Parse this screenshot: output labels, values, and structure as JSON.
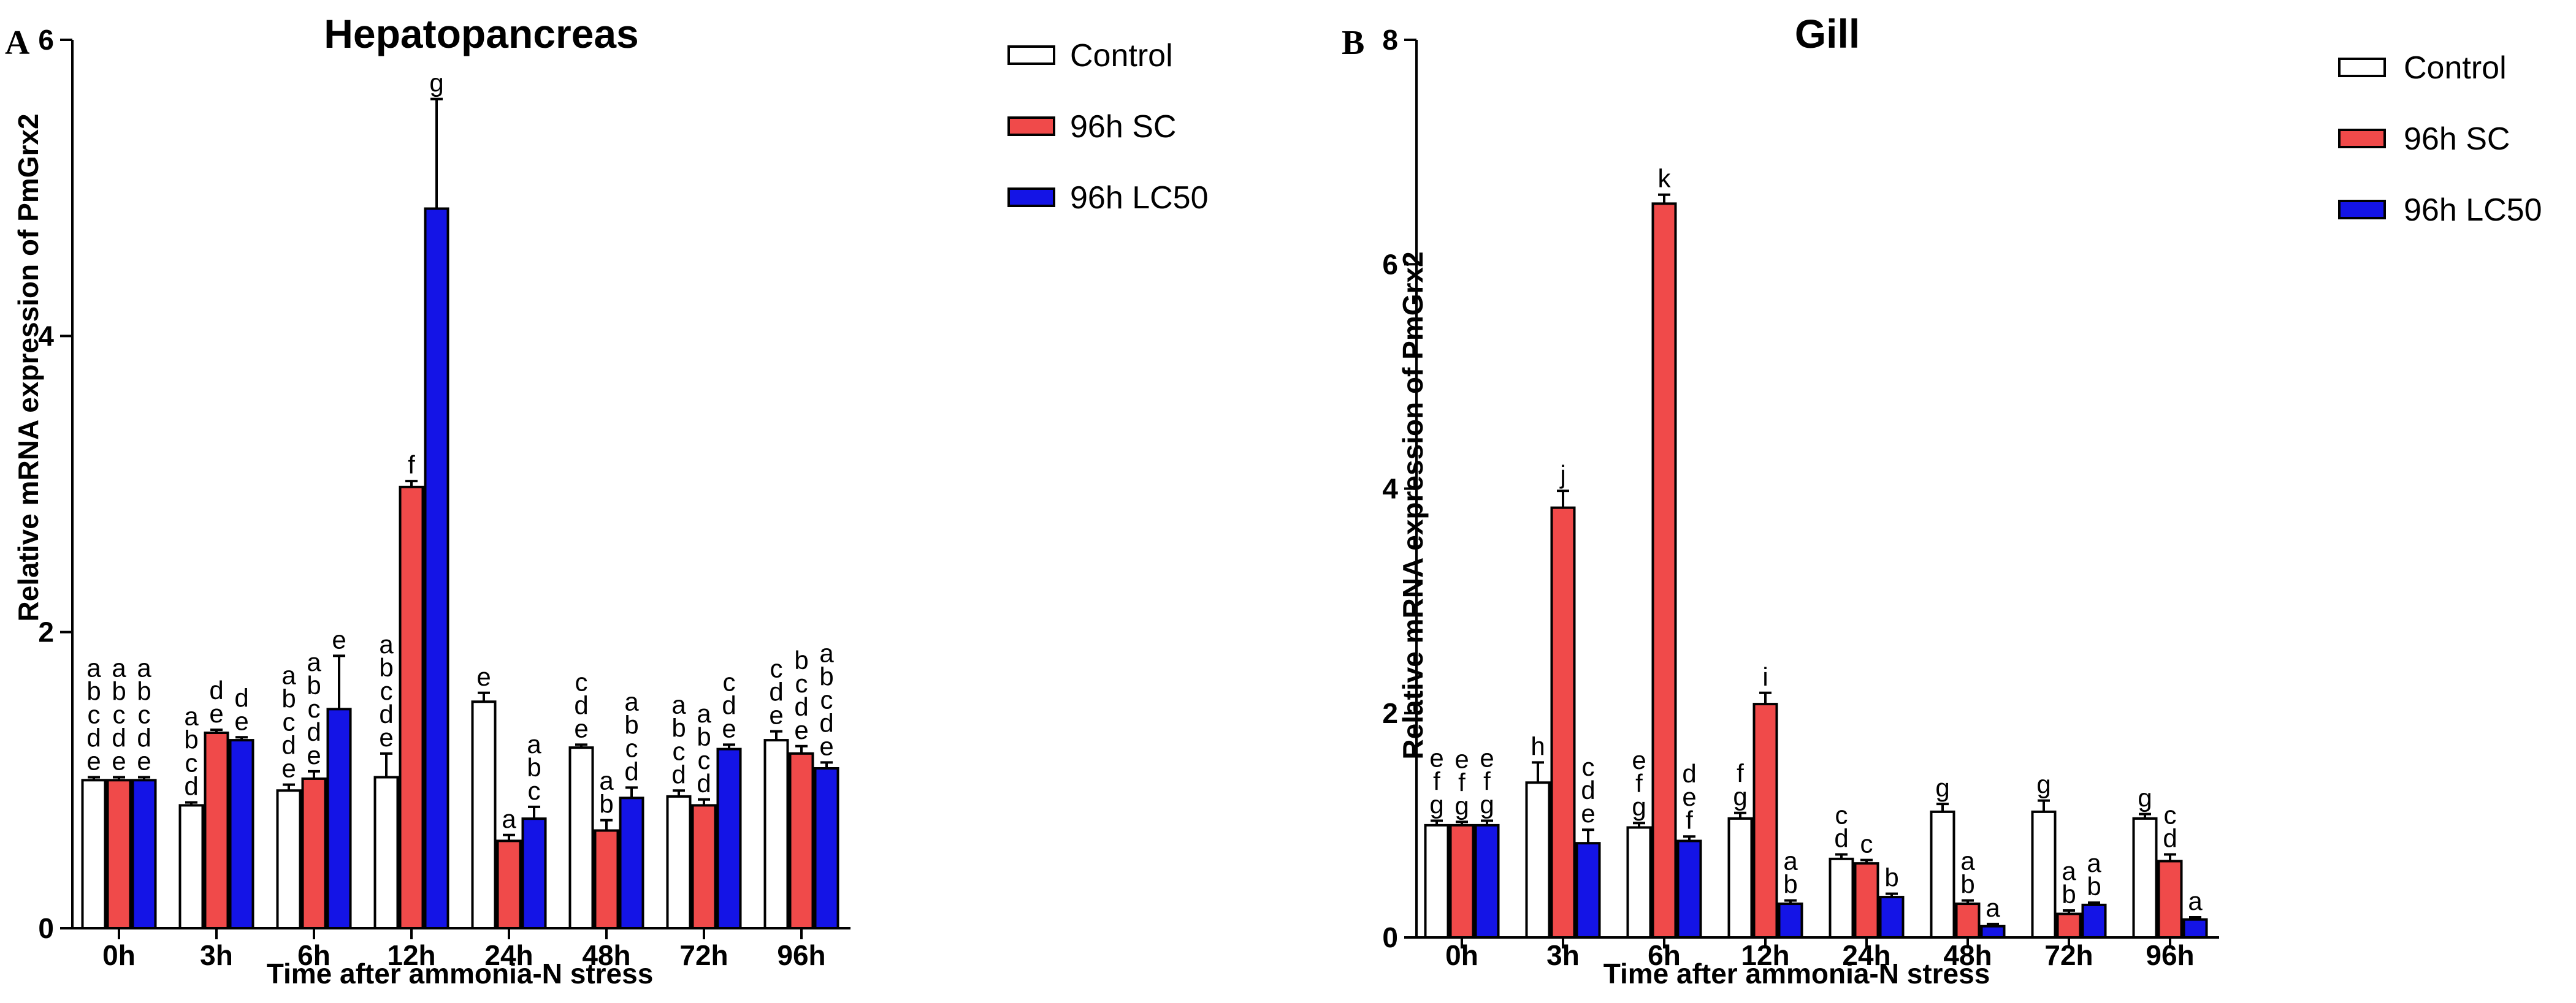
{
  "panels": [
    {
      "letter": "A",
      "chart_data": {
        "type": "bar",
        "title": "Hepatopancreas",
        "xlabel": "Time after ammonia-N stress",
        "ylabel": "Relative mRNA expression of PmGrx2",
        "ylim": [
          0,
          6
        ],
        "yticks": [
          "0",
          "2",
          "4",
          "6"
        ],
        "ytick_values": [
          0,
          2,
          4,
          6
        ],
        "categories": [
          "0h",
          "3h",
          "6h",
          "12h",
          "24h",
          "48h",
          "72h",
          "96h"
        ],
        "series": [
          {
            "name": "Control",
            "color": "#ffffff",
            "values": [
              1.0,
              0.83,
              0.93,
              1.02,
              1.53,
              1.22,
              0.89,
              1.27
            ],
            "errors": [
              0.02,
              0.02,
              0.04,
              0.16,
              0.06,
              0.02,
              0.04,
              0.06
            ],
            "labels": [
              "abcde",
              "abcd",
              "abcde",
              "abcde",
              "e",
              "cde",
              "abcd",
              "cde"
            ]
          },
          {
            "name": "96h SC",
            "color": "#f04a4a",
            "values": [
              1.0,
              1.32,
              1.01,
              2.98,
              0.59,
              0.66,
              0.83,
              1.18
            ],
            "errors": [
              0.02,
              0.02,
              0.05,
              0.04,
              0.04,
              0.07,
              0.04,
              0.05
            ],
            "labels": [
              "abcde",
              "de",
              "abcde",
              "f",
              "a",
              "ab",
              "abcd",
              "bcde"
            ]
          },
          {
            "name": "96h LC50",
            "color": "#1414e6",
            "values": [
              1.0,
              1.27,
              1.48,
              4.86,
              0.74,
              0.88,
              1.21,
              1.08
            ],
            "errors": [
              0.02,
              0.02,
              0.36,
              0.74,
              0.08,
              0.07,
              0.03,
              0.04
            ],
            "labels": [
              "abcde",
              "de",
              "e",
              "g",
              "abc",
              "abcd",
              "cde",
              "abcde"
            ]
          }
        ],
        "legend": "top-right"
      }
    },
    {
      "letter": "B",
      "chart_data": {
        "type": "bar",
        "title": "Gill",
        "xlabel": "Time after ammonia-N stress",
        "ylabel": "Relative mRNA expression of PmGrx2",
        "ylim": [
          0,
          8
        ],
        "yticks": [
          "0",
          "2",
          "4",
          "6",
          "8"
        ],
        "ytick_values": [
          0,
          2,
          4,
          6,
          8
        ],
        "categories": [
          "0h",
          "3h",
          "6h",
          "12h",
          "24h",
          "48h",
          "72h",
          "96h"
        ],
        "series": [
          {
            "name": "Control",
            "color": "#ffffff",
            "values": [
              1.0,
              1.38,
              0.98,
              1.06,
              0.7,
              1.12,
              1.12,
              1.06
            ],
            "errors": [
              0.04,
              0.18,
              0.04,
              0.05,
              0.04,
              0.07,
              0.1,
              0.04
            ],
            "labels": [
              "efg",
              "h",
              "efg",
              "fg",
              "cd",
              "g",
              "g",
              "g"
            ]
          },
          {
            "name": "96h SC",
            "color": "#f04a4a",
            "values": [
              1.0,
              3.83,
              6.54,
              2.08,
              0.66,
              0.3,
              0.21,
              0.68
            ],
            "errors": [
              0.03,
              0.15,
              0.08,
              0.1,
              0.03,
              0.03,
              0.03,
              0.06
            ],
            "labels": [
              "efg",
              "j",
              "k",
              "i",
              "c",
              "ab",
              "ab",
              "cd"
            ]
          },
          {
            "name": "96h LC50",
            "color": "#1414e6",
            "values": [
              1.0,
              0.84,
              0.86,
              0.3,
              0.36,
              0.1,
              0.29,
              0.16
            ],
            "errors": [
              0.04,
              0.12,
              0.04,
              0.03,
              0.03,
              0.02,
              0.02,
              0.02
            ],
            "labels": [
              "efg",
              "cde",
              "def",
              "ab",
              "b",
              "a",
              "ab",
              "a"
            ]
          }
        ],
        "legend": "top-right"
      }
    }
  ]
}
